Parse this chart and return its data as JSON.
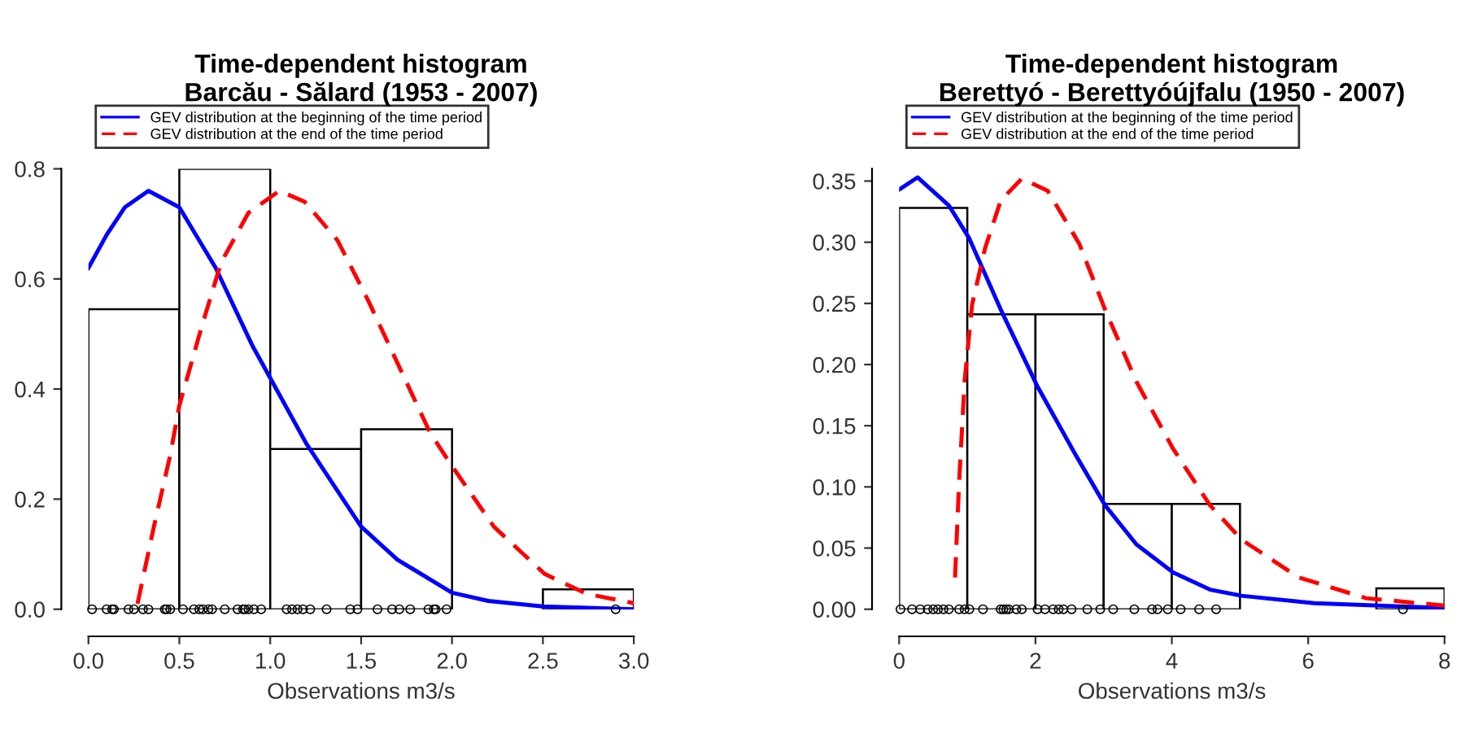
{
  "chart_data": [
    {
      "type": "histogram",
      "title": "Time-dependent histogram\nBarcău - Sălard (1953 - 2007)",
      "xlabel": "Observations m3/s",
      "bins": [
        0,
        0.5,
        1.0,
        1.5,
        2.0,
        2.5,
        3.0
      ],
      "values": [
        0.545,
        0.8,
        0.291,
        0.327,
        0,
        0.036
      ],
      "color": "#ffffff",
      "xlim": [
        0,
        3
      ],
      "xticks": [
        {
          "value": 0,
          "label": "0.0"
        },
        {
          "value": 0.5,
          "label": "0.5"
        },
        {
          "value": 1,
          "label": "1.0"
        },
        {
          "value": 1.5,
          "label": "1.5"
        },
        {
          "value": 2,
          "label": "2.0"
        },
        {
          "value": 2.5,
          "label": "2.5"
        },
        {
          "value": 3,
          "label": "3.0"
        }
      ],
      "ylim": [
        0,
        0.8
      ],
      "yticks": [
        {
          "value": 0,
          "label": "0.0"
        },
        {
          "value": 0.2,
          "label": "0.2"
        },
        {
          "value": 0.4,
          "label": "0.4"
        },
        {
          "value": 0.6,
          "label": "0.6"
        },
        {
          "value": 0.8,
          "label": "0.8"
        }
      ],
      "grid": false,
      "legend": "top left",
      "series": [
        {
          "type": "line",
          "name": "GEV distribution at the beginning of the time period",
          "color": "#0000ff",
          "line_style": "solid",
          "x": [
            0,
            0.1,
            0.2,
            0.33,
            0.5,
            0.7,
            0.9,
            1.0,
            1.2,
            1.4,
            1.5,
            1.7,
            1.9,
            2.0,
            2.2,
            2.5,
            3.0
          ],
          "values": [
            0.62,
            0.68,
            0.73,
            0.76,
            0.73,
            0.62,
            0.48,
            0.42,
            0.3,
            0.2,
            0.15,
            0.09,
            0.05,
            0.03,
            0.015,
            0.005,
            0.0
          ]
        },
        {
          "type": "line",
          "name": "GEV distribution at the end of the time period",
          "color": "#ff0000",
          "line_style": "dashed",
          "x": [
            0.27,
            0.36,
            0.45,
            0.5,
            0.62,
            0.73,
            0.88,
            1.05,
            1.19,
            1.37,
            1.54,
            1.71,
            1.88,
            2.0,
            2.23,
            2.51,
            2.74,
            3.0
          ],
          "values": [
            0.01,
            0.15,
            0.28,
            0.37,
            0.51,
            0.63,
            0.72,
            0.76,
            0.74,
            0.67,
            0.56,
            0.44,
            0.32,
            0.26,
            0.15,
            0.064,
            0.028,
            0.011
          ]
        },
        {
          "type": "scatter",
          "color": "#000000",
          "marker": "circle",
          "x": [
            0.02,
            0.1,
            0.13,
            0.14,
            0.22,
            0.25,
            0.3,
            0.33,
            0.42,
            0.43,
            0.45,
            0.52,
            0.58,
            0.61,
            0.63,
            0.66,
            0.68,
            0.75,
            0.82,
            0.85,
            0.86,
            0.88,
            0.91,
            0.95,
            1.09,
            1.12,
            1.15,
            1.18,
            1.22,
            1.31,
            1.44,
            1.48,
            1.59,
            1.67,
            1.71,
            1.77,
            1.87,
            1.9,
            1.91,
            1.97,
            2.9
          ],
          "values": [
            0,
            0,
            0,
            0,
            0,
            0,
            0,
            0,
            0,
            0,
            0,
            0,
            0,
            0,
            0,
            0,
            0,
            0,
            0,
            0,
            0,
            0,
            0,
            0,
            0,
            0,
            0,
            0,
            0,
            0,
            0,
            0,
            0,
            0,
            0,
            0,
            0,
            0,
            0,
            0,
            0
          ]
        }
      ]
    },
    {
      "type": "histogram",
      "title": "Time-dependent histogram\nBerettyó - Berettyóújfalu (1950 - 2007)",
      "xlabel": "Observations m3/s",
      "bins": [
        0,
        1,
        2,
        3,
        4,
        5,
        6,
        7,
        8
      ],
      "values": [
        0.328,
        0.241,
        0.241,
        0.086,
        0.086,
        0,
        0,
        0.017
      ],
      "color": "#ffffff",
      "xlim": [
        0,
        8
      ],
      "xticks": [
        0,
        2,
        4,
        6,
        8
      ],
      "ylim": [
        0,
        0.36
      ],
      "yticks": [
        {
          "value": 0,
          "label": "0.00"
        },
        {
          "value": 0.05,
          "label": "0.05"
        },
        {
          "value": 0.1,
          "label": "0.10"
        },
        {
          "value": 0.15,
          "label": "0.15"
        },
        {
          "value": 0.2,
          "label": "0.20"
        },
        {
          "value": 0.25,
          "label": "0.25"
        },
        {
          "value": 0.3,
          "label": "0.30"
        },
        {
          "value": 0.35,
          "label": "0.35"
        }
      ],
      "grid": false,
      "legend": "top left",
      "series": [
        {
          "type": "line",
          "name": "GEV distribution at the beginning of the time period",
          "color": "#0000ff",
          "line_style": "solid",
          "x": [
            0,
            0.27,
            0.73,
            1.03,
            1.49,
            2.03,
            2.57,
            3.02,
            3.48,
            4.02,
            4.56,
            5.02,
            6.09,
            8
          ],
          "values": [
            0.343,
            0.353,
            0.33,
            0.303,
            0.245,
            0.182,
            0.128,
            0.085,
            0.053,
            0.03,
            0.016,
            0.011,
            0.005,
            0.001
          ]
        },
        {
          "type": "line",
          "name": "GEV distribution at the end of the time period",
          "color": "#ff0000",
          "line_style": "dashed",
          "x": [
            0.82,
            0.88,
            0.96,
            1.07,
            1.26,
            1.49,
            1.8,
            2.18,
            2.64,
            3.02,
            3.48,
            4.02,
            4.56,
            5.02,
            5.86,
            6.85,
            8
          ],
          "values": [
            0.026,
            0.104,
            0.186,
            0.249,
            0.295,
            0.334,
            0.352,
            0.342,
            0.299,
            0.245,
            0.186,
            0.131,
            0.085,
            0.057,
            0.026,
            0.009,
            0.003
          ]
        },
        {
          "type": "scatter",
          "color": "#000000",
          "marker": "circle",
          "x": [
            0.02,
            0.19,
            0.31,
            0.42,
            0.5,
            0.57,
            0.65,
            0.73,
            0.88,
            0.96,
            1.03,
            1.23,
            1.49,
            1.53,
            1.57,
            1.61,
            1.72,
            1.8,
            2.03,
            2.14,
            2.26,
            2.34,
            2.41,
            2.53,
            2.76,
            2.95,
            3.14,
            3.45,
            3.71,
            3.79,
            3.94,
            4.13,
            4.4,
            4.65,
            7.39
          ],
          "values": [
            0,
            0,
            0,
            0,
            0,
            0,
            0,
            0,
            0,
            0,
            0,
            0,
            0,
            0,
            0,
            0,
            0,
            0,
            0,
            0,
            0,
            0,
            0,
            0,
            0,
            0,
            0,
            0,
            0,
            0,
            0,
            0,
            0,
            0,
            0
          ]
        }
      ]
    }
  ]
}
